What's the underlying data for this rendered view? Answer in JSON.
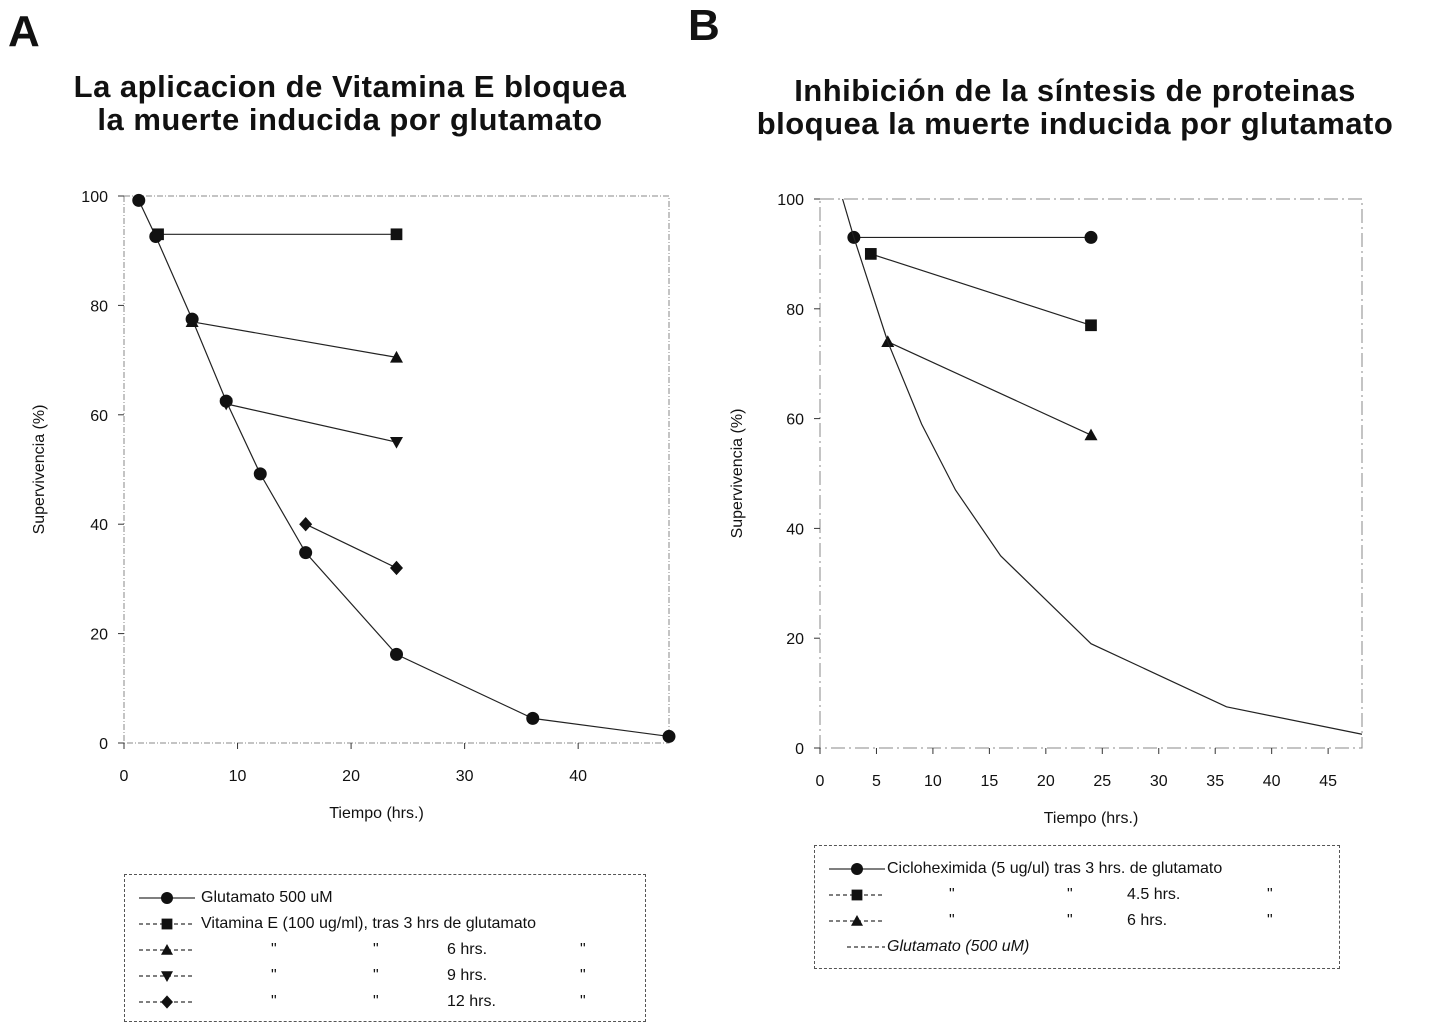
{
  "panel_a": {
    "letter": "A",
    "title_line1": "La aplicacion de Vitamina E bloquea",
    "title_line2": "la muerte inducida por glutamato",
    "legend": [
      {
        "symbol": "circle",
        "label": "Glutamato 500 uM",
        "ditto1": "",
        "ditto2": "",
        "hrs": "",
        "ditto3": ""
      },
      {
        "symbol": "square",
        "label": "Vitamina E (100 ug/ml), tras 3 hrs de glutamato",
        "ditto1": "",
        "ditto2": "",
        "hrs": "",
        "ditto3": ""
      },
      {
        "symbol": "triangle-up",
        "label": "",
        "ditto1": "\"",
        "ditto2": "\"",
        "hrs": "6 hrs.",
        "ditto3": "\""
      },
      {
        "symbol": "triangle-down",
        "label": "",
        "ditto1": "\"",
        "ditto2": "\"",
        "hrs": "9 hrs.",
        "ditto3": "\""
      },
      {
        "symbol": "diamond",
        "label": "",
        "ditto1": "\"",
        "ditto2": "\"",
        "hrs": "12 hrs.",
        "ditto3": "\""
      }
    ]
  },
  "panel_b": {
    "letter": "B",
    "title_line1": "Inhibición de la síntesis de proteinas",
    "title_line2": "bloquea la muerte inducida por glutamato",
    "legend": [
      {
        "symbol": "circle",
        "label": "Cicloheximida (5 ug/ul) tras 3 hrs. de glutamato",
        "ditto1": "",
        "ditto2": "",
        "hrs": "",
        "ditto3": ""
      },
      {
        "symbol": "square",
        "label": "",
        "ditto1": "\"",
        "ditto2": "\"",
        "hrs": "4.5 hrs.",
        "ditto3": "\""
      },
      {
        "symbol": "triangle-up",
        "label": "",
        "ditto1": "\"",
        "ditto2": "\"",
        "hrs": "6 hrs.",
        "ditto3": "\""
      },
      {
        "symbol": "line",
        "label": "Glutamato (500 uM)",
        "ditto1": "",
        "ditto2": "",
        "hrs": "",
        "ditto3": ""
      }
    ]
  },
  "chart_data": [
    {
      "type": "line",
      "title": "La aplicacion de Vitamina E bloquea la muerte inducida por glutamato",
      "xlabel": "Tiempo (hrs.)",
      "ylabel": "Supervivencia (%)",
      "xlim": [
        0,
        48
      ],
      "ylim": [
        0,
        100
      ],
      "xticks": [
        0,
        10,
        20,
        30,
        40
      ],
      "yticks": [
        0,
        20,
        40,
        60,
        80,
        100
      ],
      "grid": false,
      "series": [
        {
          "name": "Glutamato 500 uM",
          "marker": "circle",
          "x": [
            1.3,
            2.8,
            6,
            9,
            12,
            16,
            24,
            36,
            48
          ],
          "y": [
            99.2,
            92.6,
            77.5,
            62.5,
            49.2,
            34.8,
            16.2,
            4.5,
            1.2
          ]
        },
        {
          "name": "Vitamina E (100 ug/ml), tras 3 hrs de glutamato",
          "marker": "square",
          "x": [
            3,
            24
          ],
          "y": [
            93,
            93
          ]
        },
        {
          "name": "6 hrs.",
          "marker": "triangle-up",
          "x": [
            6,
            24
          ],
          "y": [
            77,
            70.5
          ]
        },
        {
          "name": "9 hrs.",
          "marker": "triangle-down",
          "x": [
            9,
            24
          ],
          "y": [
            62,
            55
          ]
        },
        {
          "name": "12 hrs.",
          "marker": "diamond",
          "x": [
            16,
            24
          ],
          "y": [
            40,
            32
          ]
        }
      ]
    },
    {
      "type": "line",
      "title": "Inhibición de la síntesis de proteinas bloquea la muerte inducida por glutamato",
      "xlabel": "Tiempo (hrs.)",
      "ylabel": "Supervivencia (%)",
      "xlim": [
        0,
        48
      ],
      "ylim": [
        0,
        100
      ],
      "xticks": [
        0,
        5,
        10,
        15,
        20,
        25,
        30,
        35,
        40,
        45
      ],
      "yticks": [
        0,
        20,
        40,
        60,
        80,
        100
      ],
      "grid": false,
      "series": [
        {
          "name": "Cicloheximida (5 ug/ul) tras 3 hrs. de glutamato",
          "marker": "circle",
          "x": [
            3,
            24
          ],
          "y": [
            93,
            93
          ]
        },
        {
          "name": "4.5 hrs.",
          "marker": "square",
          "x": [
            4.5,
            24
          ],
          "y": [
            90,
            77
          ]
        },
        {
          "name": "6 hrs.",
          "marker": "triangle-up",
          "x": [
            6,
            24
          ],
          "y": [
            74,
            57
          ]
        },
        {
          "name": "Glutamato (500 uM)",
          "marker": "none",
          "x": [
            2,
            3,
            6,
            9,
            12,
            16,
            24,
            36,
            48
          ],
          "y": [
            100,
            93,
            74,
            59,
            47,
            35,
            19,
            7.5,
            2.5
          ]
        }
      ]
    }
  ]
}
